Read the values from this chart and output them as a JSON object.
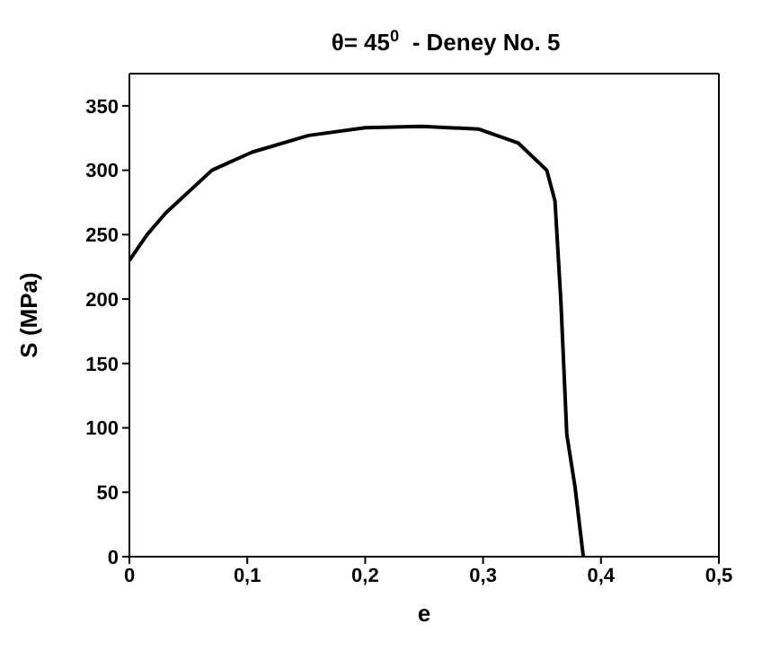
{
  "chart_data": {
    "type": "line",
    "title": "θ= 45$^{0}$  - Deney No. 5",
    "xlabel": "e",
    "ylabel": "S (MPa)",
    "series": [
      {
        "color": "#000000",
        "x": [
          0,
          0.015,
          0.031,
          0.07,
          0.104,
          0.152,
          0.2,
          0.248,
          0.296,
          0.33,
          0.354,
          0.361,
          0.366,
          0.371,
          0.378,
          0.385
        ],
        "values": [
          230,
          250,
          267,
          300,
          314,
          327,
          333,
          334,
          332,
          321,
          300,
          276,
          198,
          95,
          54,
          0
        ]
      }
    ],
    "xlim": [
      0,
      0.5
    ],
    "xticks": [
      {
        "value": 0,
        "label": "0"
      },
      {
        "value": 0.1,
        "label": "0,1"
      },
      {
        "value": 0.2,
        "label": "0,2"
      },
      {
        "value": 0.3,
        "label": "0,3"
      },
      {
        "value": 0.4,
        "label": "0,4"
      },
      {
        "value": 0.5,
        "label": "0,5"
      }
    ],
    "ylim": [
      0,
      375
    ],
    "yticks": [
      0,
      50,
      100,
      150,
      200,
      250,
      300,
      350
    ],
    "grid": false,
    "legend": false,
    "marker": "none",
    "line_style": "solid"
  }
}
